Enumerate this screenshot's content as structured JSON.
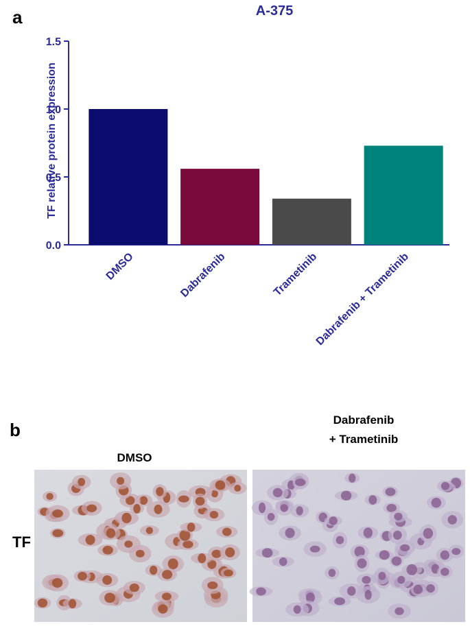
{
  "panel_labels": [
    "a",
    "b"
  ],
  "chart_data": {
    "type": "bar",
    "title": "A-375",
    "y_label": "TF relative protein expression",
    "categories": [
      "DMSO",
      "Dabrafenib",
      "Trametinib",
      "Dabrafenib + Trametinib"
    ],
    "values": [
      1.0,
      0.56,
      0.34,
      0.73
    ],
    "colors": [
      "#0c0c6e",
      "#7a0a3c",
      "#4a4a4a",
      "#00827c"
    ],
    "ylim": [
      0,
      1.5
    ],
    "yticks": [
      {
        "value": 0,
        "label": "0.0"
      },
      {
        "value": 0.5,
        "label": "0.5"
      },
      {
        "value": 1,
        "label": "1.0"
      },
      {
        "value": 1.5,
        "label": "1.5"
      }
    ]
  },
  "panel_b": {
    "columns": [
      [
        "DMSO"
      ],
      [
        "Dabrafenib",
        "+ Trametinib"
      ]
    ],
    "row_label": "TF"
  }
}
